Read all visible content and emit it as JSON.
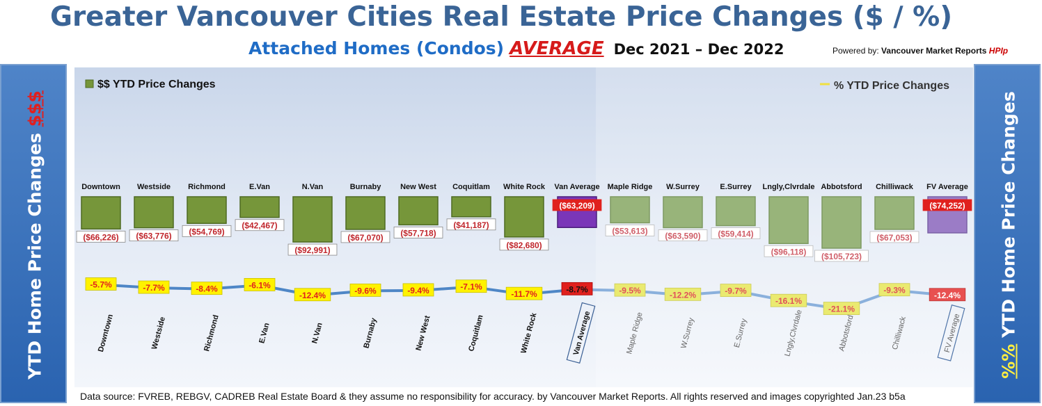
{
  "header": {
    "title": "Greater Vancouver Cities Real Estate Price Changes ($ / %)",
    "subtitle_part1": "Attached Homes (Condos)",
    "subtitle_part2": "AVERAGE",
    "subtitle_part3": "Dec 2021 – Dec 2022",
    "powered_prefix": "Powered by: ",
    "powered_name": "Vancouver Market Reports ",
    "powered_brand": "HPIp"
  },
  "side_left": {
    "text": "YTD Home Price Changes ",
    "highlight": "$$$"
  },
  "side_right": {
    "highlight": "%%",
    "text": " YTD Home Price  Changes"
  },
  "footer": {
    "text": "Data source: FVREB, REBGV, CADREB Real Estate Board & they assume no responsibility for accuracy. by Vancouver Market Reports. All rights reserved and  images copyrighted Jan.23 b5a"
  },
  "colors": {
    "bar_van": "#76963a",
    "bar_van_avg": "#7a36b8",
    "bar_fv": "#98b47a",
    "bar_fv_avg": "#9b7cc6",
    "line": "#4e86c6",
    "line_fv": "#8ab0dc",
    "label_red": "#e0211e"
  },
  "chart_data": {
    "type": "bar",
    "legend": [
      {
        "label": "$$ YTD Price Changes",
        "placement": "top-left"
      },
      {
        "label": "% YTD Price Changes",
        "placement": "top-right"
      }
    ],
    "categories": [
      "Downtown",
      "Westside",
      "Richmond",
      "E.Van",
      "N.Van",
      "Burnaby",
      "New West",
      "Coquitlam",
      "White Rock",
      "Van Average",
      "Maple Ridge",
      "W.Surrey",
      "E.Surrey",
      "Lngly,Clvrdale",
      "Abbotsford",
      "Chilliwack",
      "FV Average"
    ],
    "series": [
      {
        "name": "$$ YTD Price Changes",
        "values": [
          -66226,
          -63776,
          -54769,
          -42467,
          -92991,
          -67070,
          -57718,
          -41187,
          -82680,
          -63209,
          -53613,
          -63590,
          -59414,
          -96118,
          -105723,
          -67053,
          -74252
        ],
        "labels": [
          "($66,226)",
          "($63,776)",
          "($54,769)",
          "($42,467)",
          "($92,991)",
          "($67,070)",
          "($57,718)",
          "($41,187)",
          "($82,680)",
          "($63,209)",
          "($53,613)",
          "($63,590)",
          "($59,414)",
          "($96,118)",
          "($105,723)",
          "($67,053)",
          "($74,252)"
        ]
      },
      {
        "name": "% YTD Price Changes",
        "values": [
          -5.7,
          -7.7,
          -8.4,
          -6.1,
          -12.4,
          -9.6,
          -9.4,
          -7.1,
          -11.7,
          -8.7,
          -9.5,
          -12.2,
          -9.7,
          -16.1,
          -21.1,
          -9.3,
          -12.4
        ],
        "labels": [
          "-5.7%",
          "-7.7%",
          "-8.4%",
          "-6.1%",
          "-12.4%",
          "-9.6%",
          "-9.4%",
          "-7.1%",
          "-11.7%",
          "-8.7%",
          "-9.5%",
          "-12.2%",
          "-9.7%",
          "-16.1%",
          "-21.1%",
          "-9.3%",
          "-12.4%"
        ]
      }
    ]
  }
}
